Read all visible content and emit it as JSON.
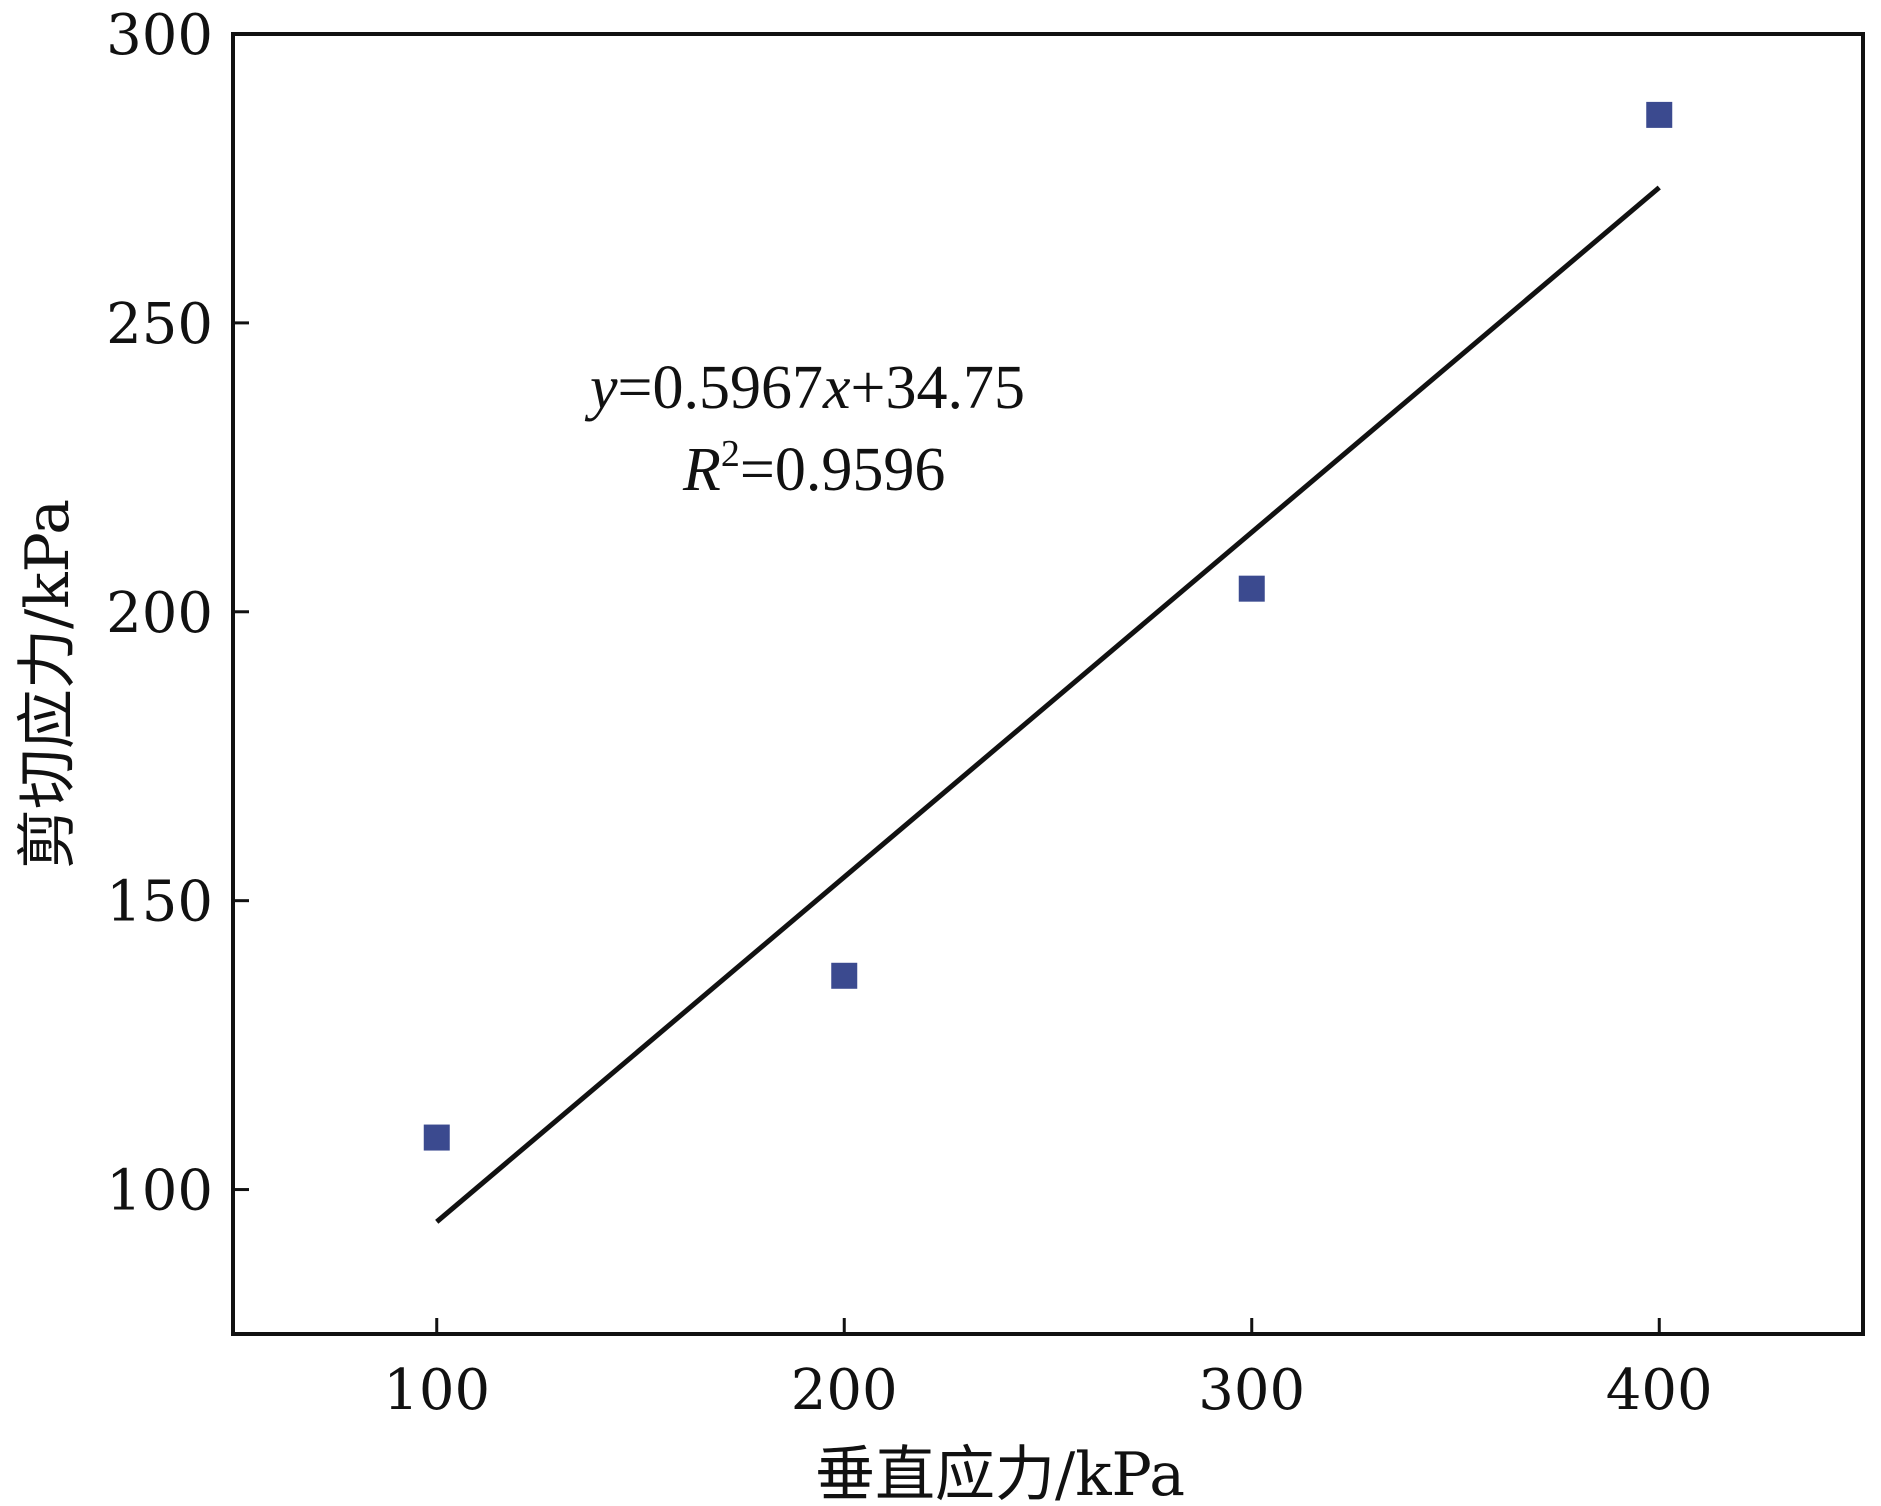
{
  "chart_data": {
    "type": "scatter",
    "title": "",
    "xlabel": "垂直应力/kPa",
    "ylabel": "剪切应力/kPa",
    "xlim": [
      50,
      450
    ],
    "ylim": [
      75,
      300
    ],
    "xticks": [
      100,
      200,
      300,
      400
    ],
    "yticks": [
      100,
      150,
      200,
      250,
      300
    ],
    "grid": false,
    "series": [
      {
        "marker": "square",
        "color": "#3b4a8f",
        "points": [
          {
            "x": 100,
            "y": 109
          },
          {
            "x": 200,
            "y": 137
          },
          {
            "x": 300,
            "y": 204
          },
          {
            "x": 400,
            "y": 286
          }
        ]
      }
    ],
    "fit": {
      "slope": 0.5967,
      "intercept": 34.75,
      "r2": 0.9596,
      "x_range": [
        100,
        400
      ],
      "color": "#111111"
    },
    "annotation": {
      "eq_var": "y",
      "eq_mid": "=0.5967",
      "eq_x": "x",
      "eq_tail": "+34.75",
      "r_var": "R",
      "r_sup": "2",
      "r_tail": "=0.9596"
    }
  }
}
